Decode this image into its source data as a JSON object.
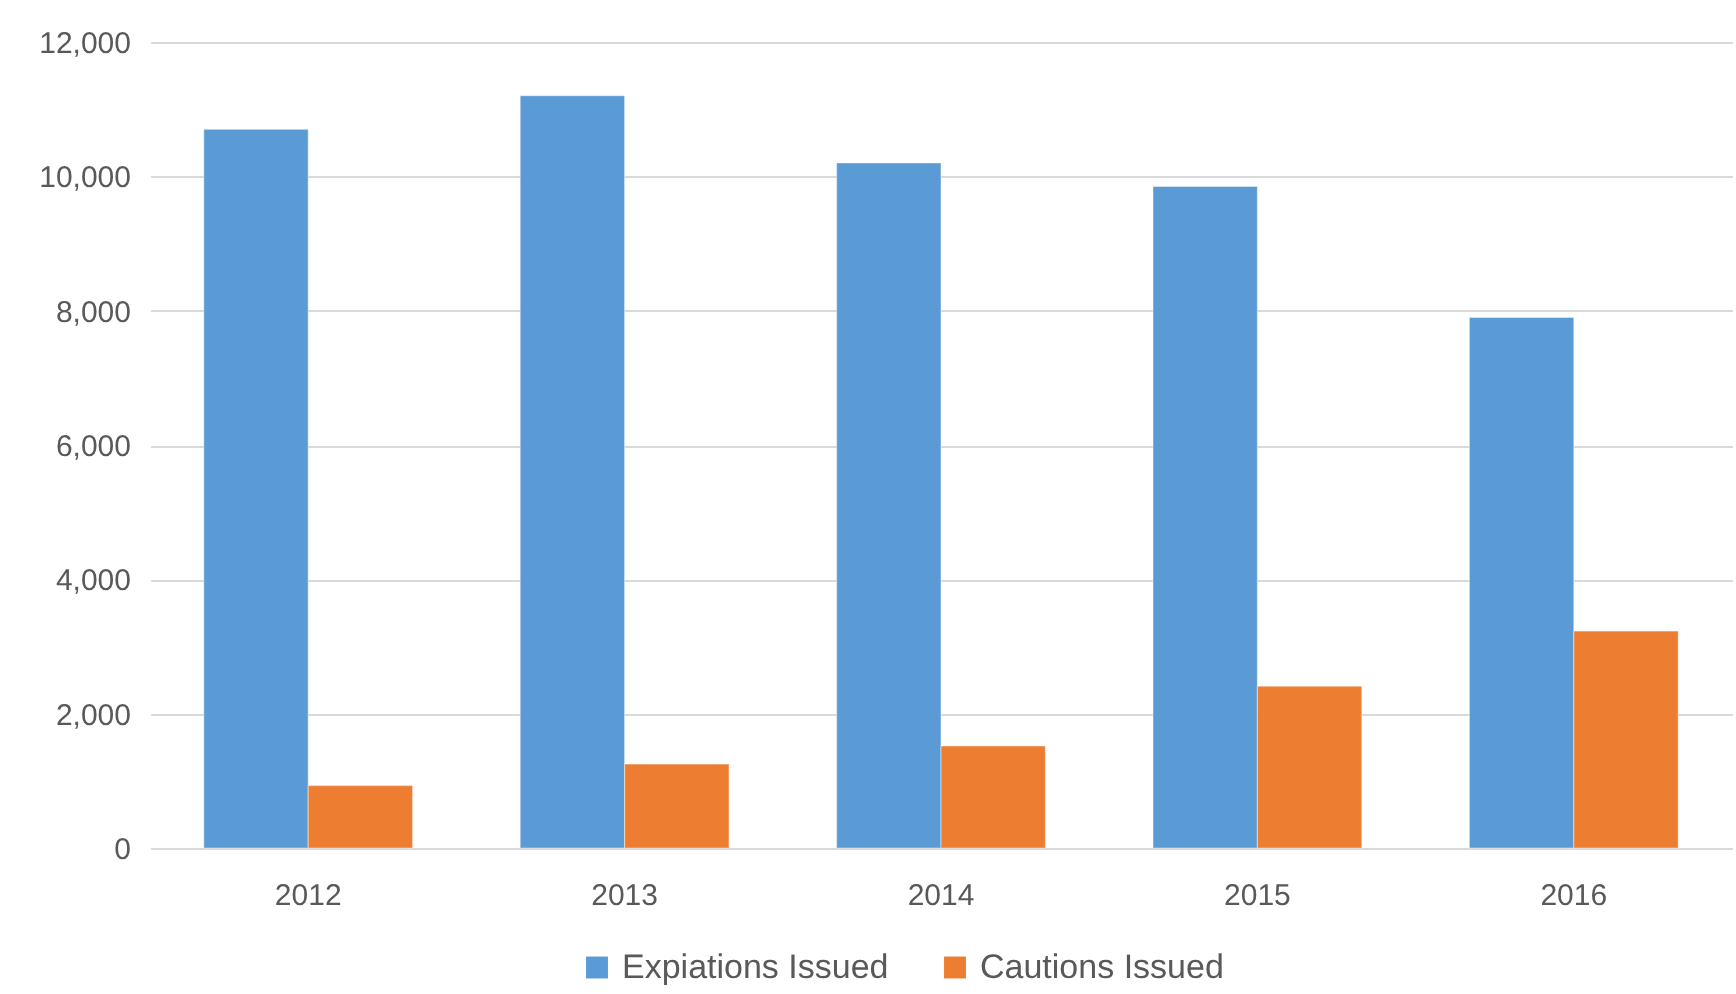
{
  "chart_data": {
    "type": "bar",
    "categories": [
      "2012",
      "2013",
      "2014",
      "2015",
      "2016"
    ],
    "series": [
      {
        "name": "Expiations Issued",
        "color": "#5b9bd5",
        "values": [
          10700,
          11200,
          10200,
          9850,
          7900
        ]
      },
      {
        "name": "Cautions Issued",
        "color": "#ed7d31",
        "values": [
          930,
          1250,
          1520,
          2410,
          3230
        ]
      }
    ],
    "ylim": [
      0,
      12000
    ],
    "yticks": [
      0,
      {
        "value": 2000,
        "label": "2,000"
      },
      {
        "value": 4000,
        "label": "4,000"
      },
      {
        "value": 6000,
        "label": "6,000"
      },
      {
        "value": 8000,
        "label": "8,000"
      },
      {
        "value": 10000,
        "label": "10,000"
      },
      {
        "value": 12000,
        "label": "12,000"
      }
    ],
    "grid": "y",
    "legend": "bottom"
  }
}
